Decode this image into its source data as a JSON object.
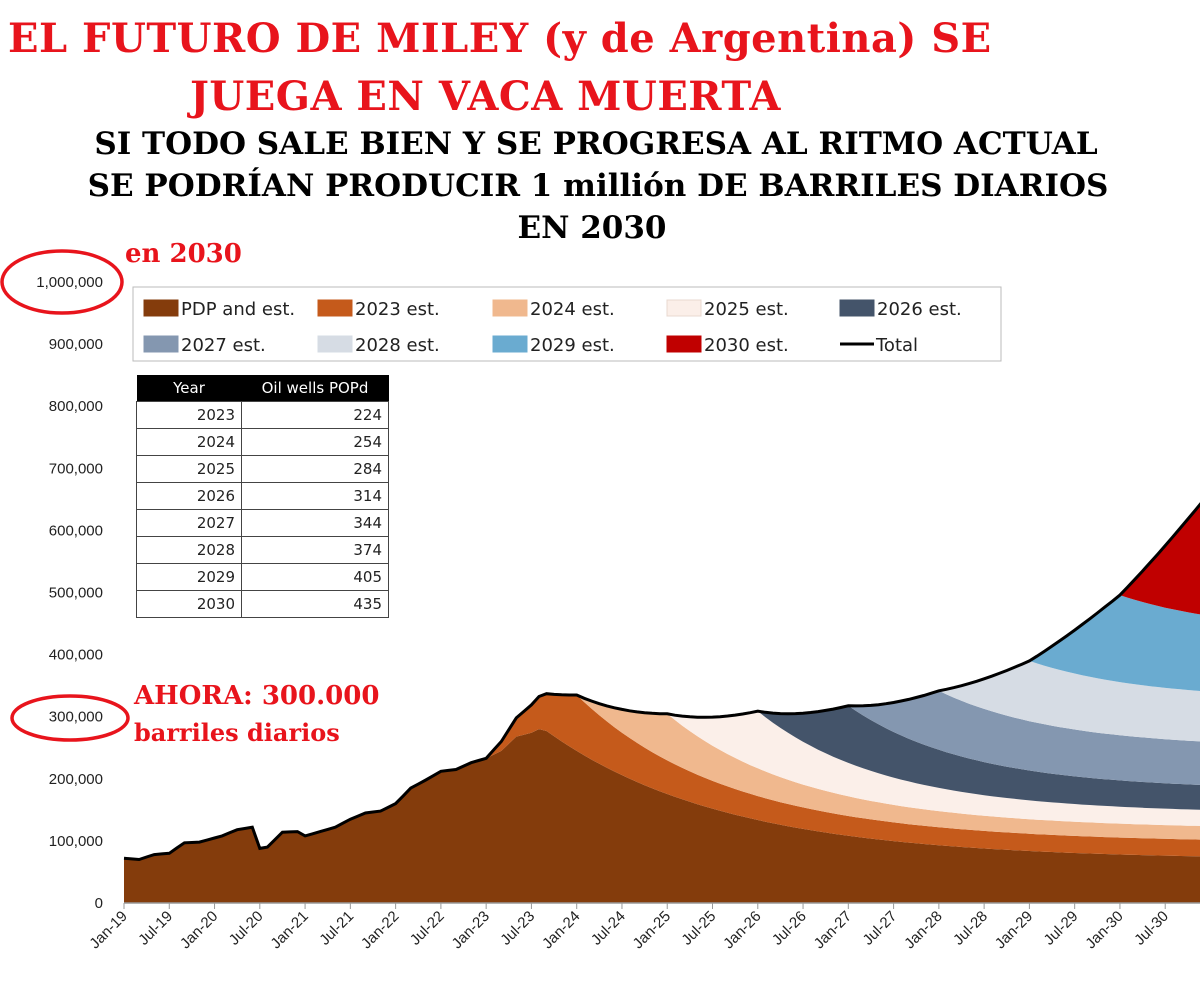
{
  "headline": {
    "line1": "EL FUTURO DE MILEY (y de Argentina) SE",
    "line2": "JUEGA EN VACA MUERTA"
  },
  "subheadline": {
    "line1": "SI TODO SALE BIEN Y SE PROGRESA AL RITMO ACTUAL",
    "line2": "SE PODRÍAN PRODUCIR 1 millión DE BARRILES DIARIOS",
    "line3": "EN 2030"
  },
  "annotations": {
    "top_note": "en 2030",
    "now_line1": "AHORA: 300.000",
    "now_line2": "barriles diarios",
    "circle_color": "#e8141c"
  },
  "table": {
    "headers": [
      "Year",
      "Oil wells POPd"
    ],
    "rows": [
      [
        "2023",
        "224"
      ],
      [
        "2024",
        "254"
      ],
      [
        "2025",
        "284"
      ],
      [
        "2026",
        "314"
      ],
      [
        "2027",
        "344"
      ],
      [
        "2028",
        "374"
      ],
      [
        "2029",
        "405"
      ],
      [
        "2030",
        "435"
      ]
    ]
  },
  "chart_data": {
    "type": "area",
    "stacked": true,
    "ylim": [
      0,
      1000000
    ],
    "yticks": [
      0,
      100000,
      200000,
      300000,
      400000,
      500000,
      600000,
      700000,
      800000,
      900000,
      1000000
    ],
    "ytick_labels": [
      "0",
      "100,000",
      "200,000",
      "300,000",
      "400,000",
      "500,000",
      "600,000",
      "700,000",
      "800,000",
      "900,000",
      "1,000,000"
    ],
    "x_start": "2019-01",
    "x_end": "2030-12",
    "xtick_labels": [
      "Jan-19",
      "Jul-19",
      "Jan-20",
      "Jul-20",
      "Jan-21",
      "Jul-21",
      "Jan-22",
      "Jul-22",
      "Jan-23",
      "Jul-23",
      "Jan-24",
      "Jul-24",
      "Jan-25",
      "Jul-25",
      "Jan-26",
      "Jul-26",
      "Jan-27",
      "Jul-27",
      "Jan-28",
      "Jul-28",
      "Jan-29",
      "Jul-29",
      "Jan-30",
      "Jul-30"
    ],
    "legend_position": "top",
    "series": [
      {
        "name": "PDP and est.",
        "color": "#843c0c",
        "start": "2019-01",
        "history": [
          [
            0,
            72000
          ],
          [
            2,
            70000
          ],
          [
            4,
            78000
          ],
          [
            6,
            80000
          ],
          [
            8,
            97000
          ],
          [
            10,
            98000
          ],
          [
            13,
            108000
          ],
          [
            15,
            118000
          ],
          [
            17,
            122000
          ],
          [
            18,
            88000
          ],
          [
            19,
            90000
          ],
          [
            21,
            114000
          ],
          [
            23,
            115000
          ],
          [
            24,
            108000
          ],
          [
            26,
            115000
          ],
          [
            28,
            122000
          ],
          [
            30,
            135000
          ],
          [
            32,
            145000
          ],
          [
            34,
            148000
          ],
          [
            36,
            160000
          ],
          [
            38,
            185000
          ],
          [
            40,
            198000
          ],
          [
            42,
            212000
          ],
          [
            44,
            215000
          ],
          [
            46,
            226000
          ],
          [
            48,
            233000
          ],
          [
            50,
            245000
          ],
          [
            52,
            268000
          ],
          [
            54,
            274000
          ],
          [
            55,
            280000
          ],
          [
            56,
            277000
          ]
        ],
        "decline": {
          "peak": 277000,
          "end": 75000
        }
      },
      {
        "name": "2023 est.",
        "color": "#c55a1b",
        "start": "2023-01",
        "peak": 90000,
        "end": 27000
      },
      {
        "name": "2024 est.",
        "color": "#f0b88e",
        "start": "2024-01",
        "peak": 75000,
        "end": 22000
      },
      {
        "name": "2025 est.",
        "color": "#fbefe9",
        "start": "2025-01",
        "peak": 92000,
        "end": 26000
      },
      {
        "name": "2026 est.",
        "color": "#44546a",
        "start": "2026-01",
        "peak": 92000,
        "end": 40000
      },
      {
        "name": "2027 est.",
        "color": "#8497b0",
        "start": "2027-01",
        "peak": 95000,
        "end": 70000
      },
      {
        "name": "2028 est.",
        "color": "#d6dce4",
        "start": "2028-01",
        "peak": 97000,
        "end": 81000
      },
      {
        "name": "2029 est.",
        "color": "#6aabd0",
        "start": "2029-01",
        "peak": 140000,
        "end": 123000
      },
      {
        "name": "2030 est.",
        "color": "#c00000",
        "start": "2030-01",
        "peak": 200000,
        "end": 200000
      },
      {
        "name": "Total",
        "color": "#000000",
        "kind": "line"
      }
    ]
  }
}
